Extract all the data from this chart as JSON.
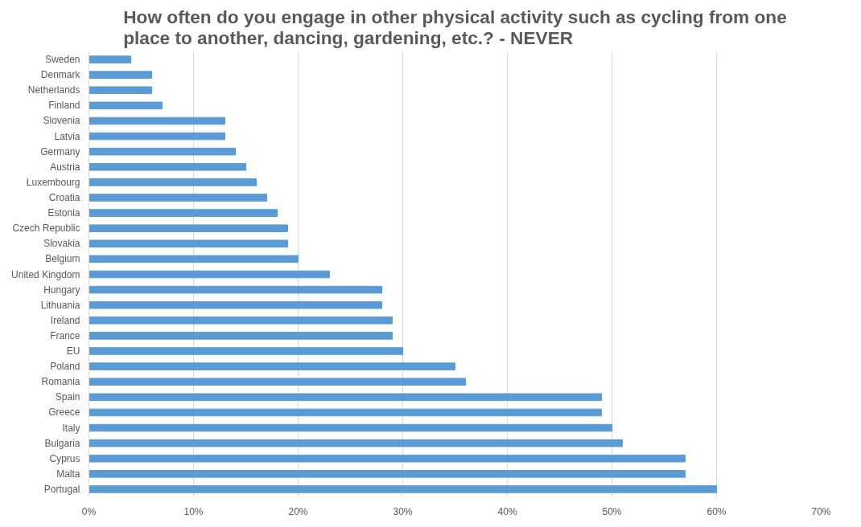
{
  "chart_data": {
    "type": "bar",
    "orientation": "horizontal",
    "title": "How often do you engage in other physical activity such as cycling from one place to another, dancing, gardening, etc.? - NEVER",
    "categories": [
      "Sweden",
      "Denmark",
      "Netherlands",
      "Finland",
      "Slovenia",
      "Latvia",
      "Germany",
      "Austria",
      "Luxembourg",
      "Croatia",
      "Estonia",
      "Czech Republic",
      "Slovakia",
      "Belgium",
      "United Kingdom",
      "Hungary",
      "Lithuania",
      "Ireland",
      "France",
      "EU",
      "Poland",
      "Romania",
      "Spain",
      "Greece",
      "Italy",
      "Bulgaria",
      "Cyprus",
      "Malta",
      "Portugal"
    ],
    "values": [
      4,
      6,
      6,
      7,
      13,
      13,
      14,
      15,
      16,
      17,
      18,
      19,
      19,
      20,
      23,
      28,
      28,
      29,
      29,
      30,
      35,
      36,
      49,
      49,
      50,
      51,
      57,
      57,
      60
    ],
    "color": "#5b9bd5",
    "xlim": [
      0,
      70
    ],
    "xticks": [
      {
        "value": 0,
        "label": "0%"
      },
      {
        "value": 10,
        "label": "10%"
      },
      {
        "value": 20,
        "label": "20%"
      },
      {
        "value": 30,
        "label": "30%"
      },
      {
        "value": 40,
        "label": "40%"
      },
      {
        "value": 50,
        "label": "50%"
      },
      {
        "value": 60,
        "label": "60%"
      },
      {
        "value": 70,
        "label": "70%"
      }
    ],
    "grid": "x"
  }
}
